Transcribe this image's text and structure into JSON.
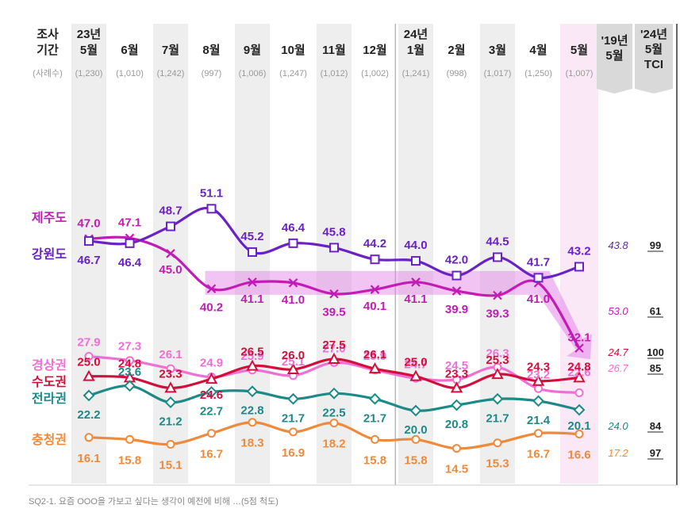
{
  "header": {
    "row_label_1": "조사",
    "row_label_2": "기간",
    "sample_label": "(사례수)",
    "ref_col": [
      "'19년",
      "5월"
    ],
    "tci_col": [
      "'24년",
      "5월",
      "TCI"
    ]
  },
  "footnote": "SQ2-1. 요즘 OOO을 가보고 싶다는 생각이 예전에 비해 …(5점 척도)",
  "colors": {
    "jeju": "#c21cb5",
    "gangwon": "#6a22c4",
    "gyeongsang": "#ef6fd5",
    "sudo": "#d10f3c",
    "jeolla": "#1d8a87",
    "chungcheong": "#ef8a3c",
    "highlight": "#e27de6",
    "column_shade": "#eeeeee",
    "ref_text": "#c46b18"
  },
  "chart_data": {
    "type": "line",
    "categories": [
      {
        "year": "23년",
        "month": "5월",
        "n": "(1,230)"
      },
      {
        "year": "",
        "month": "6월",
        "n": "(1,010)"
      },
      {
        "year": "",
        "month": "7월",
        "n": "(1,242)"
      },
      {
        "year": "",
        "month": "8월",
        "n": "(997)"
      },
      {
        "year": "",
        "month": "9월",
        "n": "(1,006)"
      },
      {
        "year": "",
        "month": "10월",
        "n": "(1,247)"
      },
      {
        "year": "",
        "month": "11월",
        "n": "(1,012)"
      },
      {
        "year": "",
        "month": "12월",
        "n": "(1,002)"
      },
      {
        "year": "24년",
        "month": "1월",
        "n": "(1,241)"
      },
      {
        "year": "",
        "month": "2월",
        "n": "(998)"
      },
      {
        "year": "",
        "month": "3월",
        "n": "(1,017)"
      },
      {
        "year": "",
        "month": "4월",
        "n": "(1,250)"
      },
      {
        "year": "",
        "month": "5월",
        "n": "(1,007)"
      }
    ],
    "series": [
      {
        "key": "jeju",
        "name": "제주도",
        "marker": "x",
        "values": [
          47.0,
          47.1,
          45.0,
          40.2,
          41.1,
          41.0,
          39.5,
          40.1,
          41.1,
          39.9,
          39.3,
          41.0,
          32.1
        ],
        "ref_2019": "53.0",
        "tci": "61"
      },
      {
        "key": "gangwon",
        "name": "강원도",
        "marker": "square",
        "values": [
          46.7,
          46.4,
          48.7,
          51.1,
          45.2,
          46.4,
          45.8,
          44.2,
          44.0,
          42.0,
          44.5,
          41.7,
          43.2
        ],
        "ref_2019": "43.8",
        "tci": "99"
      },
      {
        "key": "gyeongsang",
        "name": "경상권",
        "marker": "circle",
        "values": [
          27.9,
          27.3,
          26.1,
          24.9,
          25.9,
          25.1,
          27.0,
          25.9,
          24.7,
          24.5,
          26.3,
          23.2,
          22.6
        ],
        "ref_2019": "26.7",
        "tci": "85"
      },
      {
        "key": "sudo",
        "name": "수도권",
        "marker": "triangle",
        "values": [
          25.0,
          24.8,
          23.3,
          24.6,
          26.5,
          26.0,
          27.5,
          26.1,
          25.0,
          23.3,
          25.3,
          24.3,
          24.8
        ],
        "ref_2019": "24.7",
        "tci": "100"
      },
      {
        "key": "jeolla",
        "name": "전라권",
        "marker": "diamond",
        "values": [
          22.2,
          23.6,
          21.2,
          22.7,
          22.8,
          21.7,
          22.5,
          21.7,
          20.0,
          20.8,
          21.7,
          21.4,
          20.1
        ],
        "ref_2019": "24.0",
        "tci": "84"
      },
      {
        "key": "chungcheong",
        "name": "충청권",
        "marker": "circle",
        "values": [
          16.1,
          15.8,
          15.1,
          16.7,
          18.3,
          16.9,
          18.2,
          15.8,
          15.8,
          14.5,
          15.3,
          16.7,
          16.6
        ],
        "ref_2019": "17.2",
        "tci": "97"
      }
    ]
  }
}
